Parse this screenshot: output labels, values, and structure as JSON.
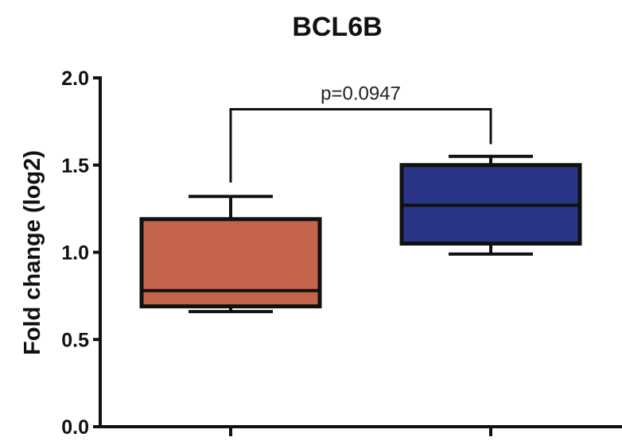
{
  "chart_data": {
    "type": "box",
    "title": "BCL6B",
    "ylabel": "Fold change (log2)",
    "xlabel": "",
    "ylim": [
      0.0,
      2.0
    ],
    "yticks": [
      "0.0",
      "0.5",
      "1.0",
      "1.5",
      "2.0"
    ],
    "grid": false,
    "series": [
      {
        "whisker_low": 0.66,
        "q1": 0.69,
        "median": 0.78,
        "q3": 1.19,
        "whisker_high": 1.32,
        "color": "#c4644d"
      },
      {
        "whisker_low": 0.99,
        "q1": 1.05,
        "median": 1.27,
        "q3": 1.5,
        "whisker_high": 1.55,
        "color": "#2b3588"
      }
    ],
    "annotation": {
      "text": "p=0.0947",
      "bracket_y": 1.82
    }
  }
}
